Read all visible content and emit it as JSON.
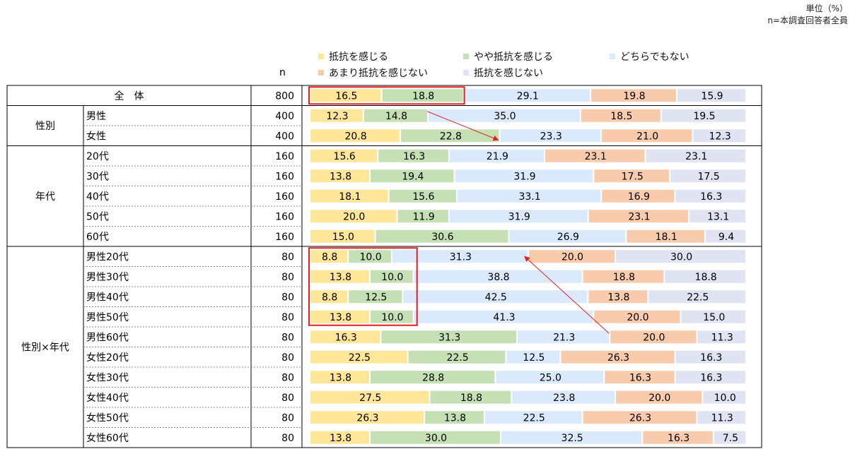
{
  "unit_note": "単位（%）",
  "base_note": "n=本調査回答者全員",
  "n_header": "n",
  "colors": {
    "series": [
      "#ffe699",
      "#c5e0b4",
      "#dae9fb",
      "#f8cbad",
      "#dfe3f2"
    ],
    "highlight": "#e02020",
    "border": "#000000"
  },
  "chart_data": {
    "type": "stacked-bar-horizontal",
    "unit": "%",
    "series_names": [
      "抵抗を感じる",
      "やや抵抗を感じる",
      "どちらでもない",
      "あまり抵抗を感じない",
      "抵抗を感じない"
    ],
    "groups": [
      {
        "label": "全　体",
        "rows": [
          {
            "label": "",
            "n": "800",
            "values": [
              16.5,
              18.8,
              29.1,
              19.8,
              15.9
            ]
          }
        ]
      },
      {
        "label": "性別",
        "rows": [
          {
            "label": "男性",
            "n": "400",
            "values": [
              12.3,
              14.8,
              35.0,
              18.5,
              19.5
            ]
          },
          {
            "label": "女性",
            "n": "400",
            "values": [
              20.8,
              22.8,
              23.3,
              21.0,
              12.3
            ]
          }
        ]
      },
      {
        "label": "年代",
        "rows": [
          {
            "label": "20代",
            "n": "160",
            "values": [
              15.6,
              16.3,
              21.9,
              23.1,
              23.1
            ]
          },
          {
            "label": "30代",
            "n": "160",
            "values": [
              13.8,
              19.4,
              31.9,
              17.5,
              17.5
            ]
          },
          {
            "label": "40代",
            "n": "160",
            "values": [
              18.1,
              15.6,
              33.1,
              16.9,
              16.3
            ]
          },
          {
            "label": "50代",
            "n": "160",
            "values": [
              20.0,
              11.9,
              31.9,
              23.1,
              13.1
            ]
          },
          {
            "label": "60代",
            "n": "160",
            "values": [
              15.0,
              30.6,
              26.9,
              18.1,
              9.4
            ]
          }
        ]
      },
      {
        "label": "性別×年代",
        "rows": [
          {
            "label": "男性20代",
            "n": "80",
            "values": [
              8.8,
              10.0,
              31.3,
              20.0,
              30.0
            ]
          },
          {
            "label": "男性30代",
            "n": "80",
            "values": [
              13.8,
              10.0,
              38.8,
              18.8,
              18.8
            ]
          },
          {
            "label": "男性40代",
            "n": "80",
            "values": [
              8.8,
              12.5,
              42.5,
              13.8,
              22.5
            ]
          },
          {
            "label": "男性50代",
            "n": "80",
            "values": [
              13.8,
              10.0,
              41.3,
              20.0,
              15.0
            ]
          },
          {
            "label": "男性60代",
            "n": "80",
            "values": [
              16.3,
              31.3,
              21.3,
              20.0,
              11.3
            ]
          },
          {
            "label": "女性20代",
            "n": "80",
            "values": [
              22.5,
              22.5,
              12.5,
              26.3,
              16.3
            ]
          },
          {
            "label": "女性30代",
            "n": "80",
            "values": [
              13.8,
              28.8,
              25.0,
              16.3,
              16.3
            ]
          },
          {
            "label": "女性40代",
            "n": "80",
            "values": [
              27.5,
              18.8,
              23.8,
              20.0,
              10.0
            ]
          },
          {
            "label": "女性50代",
            "n": "80",
            "values": [
              26.3,
              13.8,
              22.5,
              26.3,
              11.3
            ]
          },
          {
            "label": "女性60代",
            "n": "80",
            "values": [
              13.8,
              30.0,
              32.5,
              16.3,
              7.5
            ]
          }
        ]
      }
    ]
  }
}
